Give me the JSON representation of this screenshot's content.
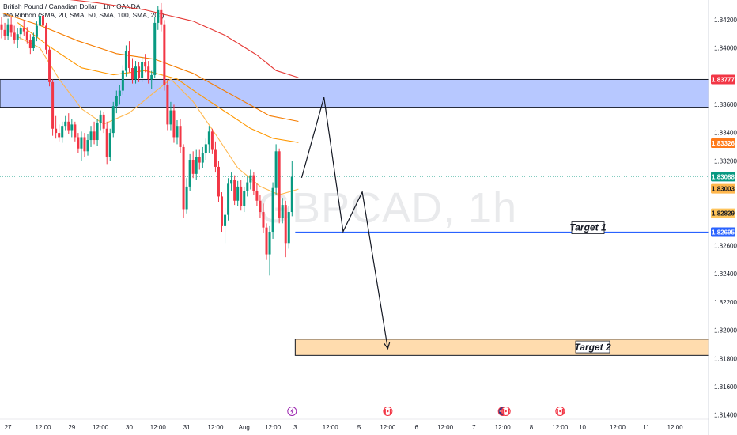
{
  "header": {
    "title": "British Pound / Canadian Dollar · 1h · OANDA",
    "indicator": "MA Ribbon (SMA, 20, SMA, 50, SMA, 100, SMA, 200)"
  },
  "watermark": "GBPCAD, 1h",
  "colors": {
    "up": "#089981",
    "down": "#f23645",
    "resistance_zone": "#b7c8ff",
    "target_zone": "#ffdcae",
    "target_line": "#2962ff",
    "sma20": "#ffb74d",
    "sma50": "#ff9800",
    "sma100": "#f57c00",
    "sma200": "#e53935"
  },
  "chart_data": {
    "type": "candlestick",
    "symbol": "GBPCAD",
    "timeframe": "1h",
    "ylim": [
      1.8137,
      1.8434
    ],
    "x_range_bars": [
      0,
      222
    ],
    "y_ticks": [
      "1.84200",
      "1.84000",
      "1.83600",
      "1.83400",
      "1.83200",
      "1.82600",
      "1.82400",
      "1.82200",
      "1.82000",
      "1.81800",
      "1.81600",
      "1.81400"
    ],
    "x_ticks": [
      {
        "bar": 2,
        "label": "27"
      },
      {
        "bar": 13,
        "label": "12:00"
      },
      {
        "bar": 22,
        "label": "29"
      },
      {
        "bar": 31,
        "label": "12:00"
      },
      {
        "bar": 40,
        "label": "30"
      },
      {
        "bar": 49,
        "label": "12:00"
      },
      {
        "bar": 58,
        "label": "31"
      },
      {
        "bar": 67,
        "label": "12:00"
      },
      {
        "bar": 76,
        "label": "Aug"
      },
      {
        "bar": 85,
        "label": "12:00"
      },
      {
        "bar": 92,
        "label": "3"
      },
      {
        "bar": 103,
        "label": "12:00"
      },
      {
        "bar": 112,
        "label": "5"
      },
      {
        "bar": 121,
        "label": "12:00"
      },
      {
        "bar": 130,
        "label": "6"
      },
      {
        "bar": 139,
        "label": "12:00"
      },
      {
        "bar": 148,
        "label": "7"
      },
      {
        "bar": 157,
        "label": "12:00"
      },
      {
        "bar": 166,
        "label": "8"
      },
      {
        "bar": 175,
        "label": "12:00"
      },
      {
        "bar": 182,
        "label": "10"
      },
      {
        "bar": 193,
        "label": "12:00"
      },
      {
        "bar": 202,
        "label": "11"
      },
      {
        "bar": 211,
        "label": "12:00"
      }
    ],
    "price_badges": [
      {
        "label": "1.83777",
        "value": 1.83777,
        "bg": "#f23645",
        "fg": "#ffffff"
      },
      {
        "label": "1.83326",
        "value": 1.83326,
        "bg": "#ff7a1a",
        "fg": "#ffffff"
      },
      {
        "label": "1.83088",
        "value": 1.83088,
        "bg": "#089981",
        "fg": "#ffffff"
      },
      {
        "label": "1.83003",
        "value": 1.83003,
        "bg": "#ffb74d",
        "fg": "#131722"
      },
      {
        "label": "1.82829",
        "value": 1.82829,
        "bg": "#ffc55c",
        "fg": "#131722"
      },
      {
        "label": "1.82695",
        "value": 1.82695,
        "bg": "#2962ff",
        "fg": "#ffffff"
      }
    ],
    "last_price": 1.83088,
    "zones": [
      {
        "top": 1.83777,
        "bottom": 1.8358,
        "from_bar": 0,
        "to_bar": 222
      },
      {
        "top": 1.81937,
        "bottom": 1.81822,
        "from_bar": 92,
        "to_bar": 222,
        "label": "Target 2"
      }
    ],
    "target_line": {
      "value": 1.82695,
      "from_bar": 92,
      "to_bar": 222,
      "label": "Target 1"
    },
    "projection_path": [
      {
        "bar": 94,
        "price": 1.8308
      },
      {
        "bar": 101,
        "price": 1.8365
      },
      {
        "bar": 107,
        "price": 1.827
      },
      {
        "bar": 113,
        "price": 1.8298
      },
      {
        "bar": 121,
        "price": 1.8187
      }
    ],
    "event_markers": [
      {
        "bar": 91,
        "type": "flash"
      },
      {
        "bar": 121,
        "type": "ca-flag"
      },
      {
        "bar": 157,
        "type": "gb-flag"
      },
      {
        "bar": 158,
        "type": "ca-flag"
      },
      {
        "bar": 175,
        "type": "ca-flag"
      }
    ],
    "candles": [
      {
        "o": 1.84168,
        "h": 1.84218,
        "l": 1.84068,
        "c": 1.84128
      },
      {
        "o": 1.84128,
        "h": 1.84178,
        "l": 1.84058,
        "c": 1.84088
      },
      {
        "o": 1.84088,
        "h": 1.84208,
        "l": 1.84058,
        "c": 1.84168
      },
      {
        "o": 1.84168,
        "h": 1.84218,
        "l": 1.84078,
        "c": 1.84108
      },
      {
        "o": 1.84108,
        "h": 1.84158,
        "l": 1.84028,
        "c": 1.84058
      },
      {
        "o": 1.84058,
        "h": 1.84138,
        "l": 1.83998,
        "c": 1.84098
      },
      {
        "o": 1.84098,
        "h": 1.84168,
        "l": 1.84058,
        "c": 1.84138
      },
      {
        "o": 1.84138,
        "h": 1.84198,
        "l": 1.84088,
        "c": 1.84118
      },
      {
        "o": 1.84118,
        "h": 1.84148,
        "l": 1.84028,
        "c": 1.84058
      },
      {
        "o": 1.84058,
        "h": 1.84098,
        "l": 1.83958,
        "c": 1.83998
      },
      {
        "o": 1.83998,
        "h": 1.84108,
        "l": 1.83978,
        "c": 1.84078
      },
      {
        "o": 1.84078,
        "h": 1.84188,
        "l": 1.84048,
        "c": 1.84158
      },
      {
        "o": 1.84158,
        "h": 1.84258,
        "l": 1.84118,
        "c": 1.84228
      },
      {
        "o": 1.84228,
        "h": 1.84288,
        "l": 1.84128,
        "c": 1.84158
      },
      {
        "o": 1.84158,
        "h": 1.84178,
        "l": 1.83958,
        "c": 1.83988
      },
      {
        "o": 1.83988,
        "h": 1.84008,
        "l": 1.83728,
        "c": 1.83758
      },
      {
        "o": 1.83758,
        "h": 1.83778,
        "l": 1.83378,
        "c": 1.83428
      },
      {
        "o": 1.83428,
        "h": 1.83518,
        "l": 1.83358,
        "c": 1.83398
      },
      {
        "o": 1.83398,
        "h": 1.83458,
        "l": 1.83338,
        "c": 1.83368
      },
      {
        "o": 1.83368,
        "h": 1.83478,
        "l": 1.83328,
        "c": 1.83448
      },
      {
        "o": 1.83448,
        "h": 1.83518,
        "l": 1.83418,
        "c": 1.83478
      },
      {
        "o": 1.83478,
        "h": 1.83538,
        "l": 1.83388,
        "c": 1.83418
      },
      {
        "o": 1.83418,
        "h": 1.83498,
        "l": 1.83368,
        "c": 1.83458
      },
      {
        "o": 1.83458,
        "h": 1.83478,
        "l": 1.83338,
        "c": 1.83368
      },
      {
        "o": 1.83368,
        "h": 1.83398,
        "l": 1.83258,
        "c": 1.83288
      },
      {
        "o": 1.83288,
        "h": 1.83408,
        "l": 1.83198,
        "c": 1.83368
      },
      {
        "o": 1.83368,
        "h": 1.83398,
        "l": 1.83228,
        "c": 1.83268
      },
      {
        "o": 1.83268,
        "h": 1.83388,
        "l": 1.83238,
        "c": 1.83348
      },
      {
        "o": 1.83348,
        "h": 1.83448,
        "l": 1.83298,
        "c": 1.83408
      },
      {
        "o": 1.83408,
        "h": 1.83478,
        "l": 1.83318,
        "c": 1.83348
      },
      {
        "o": 1.83348,
        "h": 1.83498,
        "l": 1.83308,
        "c": 1.83468
      },
      {
        "o": 1.83468,
        "h": 1.83558,
        "l": 1.83418,
        "c": 1.83528
      },
      {
        "o": 1.83528,
        "h": 1.83548,
        "l": 1.83398,
        "c": 1.83428
      },
      {
        "o": 1.83428,
        "h": 1.83478,
        "l": 1.83178,
        "c": 1.83228
      },
      {
        "o": 1.83228,
        "h": 1.83428,
        "l": 1.83198,
        "c": 1.83398
      },
      {
        "o": 1.83398,
        "h": 1.83618,
        "l": 1.83368,
        "c": 1.83588
      },
      {
        "o": 1.83588,
        "h": 1.83698,
        "l": 1.83538,
        "c": 1.83658
      },
      {
        "o": 1.83658,
        "h": 1.83738,
        "l": 1.83598,
        "c": 1.83698
      },
      {
        "o": 1.83698,
        "h": 1.83878,
        "l": 1.83668,
        "c": 1.83838
      },
      {
        "o": 1.83838,
        "h": 1.84018,
        "l": 1.83798,
        "c": 1.83978
      },
      {
        "o": 1.83978,
        "h": 1.84048,
        "l": 1.83828,
        "c": 1.83858
      },
      {
        "o": 1.83858,
        "h": 1.83928,
        "l": 1.83748,
        "c": 1.83778
      },
      {
        "o": 1.83778,
        "h": 1.83908,
        "l": 1.83748,
        "c": 1.83868
      },
      {
        "o": 1.83868,
        "h": 1.83898,
        "l": 1.83758,
        "c": 1.83788
      },
      {
        "o": 1.83788,
        "h": 1.83938,
        "l": 1.83758,
        "c": 1.83898
      },
      {
        "o": 1.83898,
        "h": 1.83958,
        "l": 1.83828,
        "c": 1.83868
      },
      {
        "o": 1.83868,
        "h": 1.83908,
        "l": 1.83748,
        "c": 1.83778
      },
      {
        "o": 1.83778,
        "h": 1.83838,
        "l": 1.83708,
        "c": 1.83808
      },
      {
        "o": 1.83808,
        "h": 1.84218,
        "l": 1.83788,
        "c": 1.84178
      },
      {
        "o": 1.84178,
        "h": 1.84298,
        "l": 1.84128,
        "c": 1.84268
      },
      {
        "o": 1.84268,
        "h": 1.84318,
        "l": 1.84118,
        "c": 1.84168
      },
      {
        "o": 1.84168,
        "h": 1.84198,
        "l": 1.83698,
        "c": 1.83738
      },
      {
        "o": 1.83738,
        "h": 1.83778,
        "l": 1.83418,
        "c": 1.83458
      },
      {
        "o": 1.83458,
        "h": 1.83618,
        "l": 1.83418,
        "c": 1.83558
      },
      {
        "o": 1.83558,
        "h": 1.83598,
        "l": 1.83328,
        "c": 1.83368
      },
      {
        "o": 1.83368,
        "h": 1.83488,
        "l": 1.83318,
        "c": 1.83448
      },
      {
        "o": 1.83448,
        "h": 1.83498,
        "l": 1.83258,
        "c": 1.83298
      },
      {
        "o": 1.83298,
        "h": 1.83318,
        "l": 1.82798,
        "c": 1.82858
      },
      {
        "o": 1.82858,
        "h": 1.83078,
        "l": 1.82828,
        "c": 1.83018
      },
      {
        "o": 1.83018,
        "h": 1.83248,
        "l": 1.82988,
        "c": 1.83208
      },
      {
        "o": 1.83208,
        "h": 1.83268,
        "l": 1.83078,
        "c": 1.83108
      },
      {
        "o": 1.83108,
        "h": 1.83278,
        "l": 1.83068,
        "c": 1.83228
      },
      {
        "o": 1.83228,
        "h": 1.83278,
        "l": 1.83138,
        "c": 1.83188
      },
      {
        "o": 1.83188,
        "h": 1.83298,
        "l": 1.83148,
        "c": 1.83258
      },
      {
        "o": 1.83258,
        "h": 1.83358,
        "l": 1.83208,
        "c": 1.83318
      },
      {
        "o": 1.83318,
        "h": 1.83448,
        "l": 1.83258,
        "c": 1.83408
      },
      {
        "o": 1.83408,
        "h": 1.83428,
        "l": 1.83248,
        "c": 1.83278
      },
      {
        "o": 1.83278,
        "h": 1.83338,
        "l": 1.83118,
        "c": 1.83158
      },
      {
        "o": 1.83158,
        "h": 1.83198,
        "l": 1.82908,
        "c": 1.82948
      },
      {
        "o": 1.82948,
        "h": 1.82978,
        "l": 1.82698,
        "c": 1.82738
      },
      {
        "o": 1.82738,
        "h": 1.82868,
        "l": 1.82618,
        "c": 1.82818
      },
      {
        "o": 1.82818,
        "h": 1.83078,
        "l": 1.82778,
        "c": 1.83038
      },
      {
        "o": 1.83038,
        "h": 1.83118,
        "l": 1.82988,
        "c": 1.83068
      },
      {
        "o": 1.83068,
        "h": 1.83098,
        "l": 1.82888,
        "c": 1.82918
      },
      {
        "o": 1.82918,
        "h": 1.83058,
        "l": 1.82878,
        "c": 1.83018
      },
      {
        "o": 1.83018,
        "h": 1.83068,
        "l": 1.82848,
        "c": 1.82878
      },
      {
        "o": 1.82878,
        "h": 1.83018,
        "l": 1.82838,
        "c": 1.82988
      },
      {
        "o": 1.82988,
        "h": 1.83088,
        "l": 1.82948,
        "c": 1.83048
      },
      {
        "o": 1.83048,
        "h": 1.83138,
        "l": 1.82998,
        "c": 1.83098
      },
      {
        "o": 1.83098,
        "h": 1.83118,
        "l": 1.82958,
        "c": 1.82988
      },
      {
        "o": 1.82988,
        "h": 1.83038,
        "l": 1.82878,
        "c": 1.82918
      },
      {
        "o": 1.82918,
        "h": 1.82958,
        "l": 1.82798,
        "c": 1.82838
      },
      {
        "o": 1.82838,
        "h": 1.82898,
        "l": 1.82688,
        "c": 1.82728
      },
      {
        "o": 1.82728,
        "h": 1.82758,
        "l": 1.82498,
        "c": 1.82538
      },
      {
        "o": 1.82538,
        "h": 1.82738,
        "l": 1.82388,
        "c": 1.82698
      },
      {
        "o": 1.82698,
        "h": 1.83048,
        "l": 1.82648,
        "c": 1.83008
      },
      {
        "o": 1.83008,
        "h": 1.83318,
        "l": 1.82958,
        "c": 1.83268
      },
      {
        "o": 1.83268,
        "h": 1.83288,
        "l": 1.82758,
        "c": 1.82798
      },
      {
        "o": 1.82798,
        "h": 1.82938,
        "l": 1.82758,
        "c": 1.82888
      },
      {
        "o": 1.82888,
        "h": 1.82918,
        "l": 1.82518,
        "c": 1.82618
      },
      {
        "o": 1.82618,
        "h": 1.82878,
        "l": 1.82578,
        "c": 1.82838
      },
      {
        "o": 1.82838,
        "h": 1.83198,
        "l": 1.82808,
        "c": 1.83088
      }
    ],
    "moving_averages": [
      {
        "name": "SMA 20",
        "color_key": "sma20",
        "points": [
          [
            5,
            1.8408
          ],
          [
            12,
            1.84
          ],
          [
            18,
            1.8378
          ],
          [
            25,
            1.8357
          ],
          [
            32,
            1.8346
          ],
          [
            40,
            1.8354
          ],
          [
            47,
            1.8367
          ],
          [
            53,
            1.8378
          ],
          [
            60,
            1.8362
          ],
          [
            67,
            1.8339
          ],
          [
            74,
            1.8315
          ],
          [
            81,
            1.8302
          ],
          [
            87,
            1.8296
          ],
          [
            93,
            1.83
          ]
        ]
      },
      {
        "name": "SMA 50",
        "color_key": "sma50",
        "points": [
          [
            5,
            1.8418
          ],
          [
            15,
            1.8401
          ],
          [
            25,
            1.8386
          ],
          [
            35,
            1.8381
          ],
          [
            45,
            1.8384
          ],
          [
            55,
            1.8378
          ],
          [
            62,
            1.8367
          ],
          [
            70,
            1.8355
          ],
          [
            78,
            1.8343
          ],
          [
            85,
            1.8336
          ],
          [
            93,
            1.8333
          ]
        ]
      },
      {
        "name": "SMA 100",
        "color_key": "sma100",
        "points": [
          [
            0,
            1.8425
          ],
          [
            12,
            1.8416
          ],
          [
            24,
            1.8405
          ],
          [
            36,
            1.8396
          ],
          [
            48,
            1.8392
          ],
          [
            60,
            1.8382
          ],
          [
            72,
            1.8367
          ],
          [
            84,
            1.8352
          ],
          [
            93,
            1.8348
          ]
        ]
      },
      {
        "name": "SMA 200",
        "color_key": "sma200",
        "points": [
          [
            0,
            1.8439
          ],
          [
            15,
            1.8436
          ],
          [
            30,
            1.8432
          ],
          [
            45,
            1.8427
          ],
          [
            60,
            1.8419
          ],
          [
            70,
            1.8409
          ],
          [
            80,
            1.8395
          ],
          [
            86,
            1.8384
          ],
          [
            93,
            1.8379
          ]
        ]
      }
    ]
  }
}
